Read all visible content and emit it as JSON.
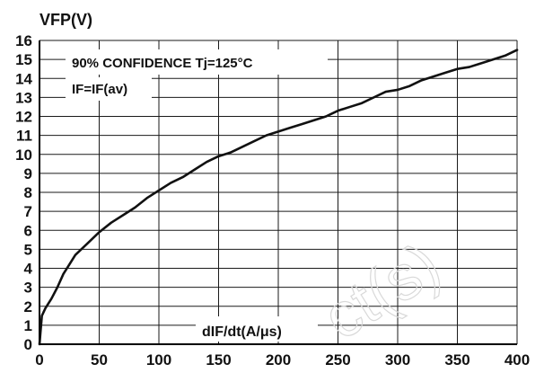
{
  "chart_data": {
    "type": "line",
    "title": "VFP(V)",
    "xlabel": "dIF/dt(A/μs)",
    "ylabel": "",
    "xlim": [
      0,
      400
    ],
    "ylim": [
      0,
      16
    ],
    "grid": true,
    "x_ticks": [
      "0",
      "50",
      "100",
      "150",
      "200",
      "250",
      "300",
      "350",
      "400"
    ],
    "y_ticks": [
      "0",
      "1",
      "2",
      "3",
      "4",
      "5",
      "6",
      "7",
      "8",
      "9",
      "10",
      "11",
      "12",
      "13",
      "14",
      "15",
      "16"
    ],
    "annotations": [
      "90% CONFIDENCE Tj=125°C",
      "IF=IF(av)"
    ],
    "watermark": "ct(s)",
    "series": [
      {
        "x": [
          0,
          2,
          5,
          10,
          15,
          20,
          25,
          30,
          40,
          50,
          60,
          70,
          80,
          90,
          100,
          110,
          120,
          130,
          140,
          150,
          160,
          170,
          180,
          190,
          200,
          210,
          220,
          230,
          240,
          250,
          260,
          270,
          280,
          290,
          300,
          310,
          320,
          330,
          340,
          350,
          360,
          370,
          380,
          390,
          400
        ],
        "y": [
          0.0,
          1.5,
          1.9,
          2.4,
          3.0,
          3.7,
          4.2,
          4.7,
          5.3,
          5.9,
          6.4,
          6.8,
          7.2,
          7.7,
          8.1,
          8.5,
          8.8,
          9.2,
          9.6,
          9.9,
          10.1,
          10.4,
          10.7,
          11.0,
          11.2,
          11.4,
          11.6,
          11.8,
          12.0,
          12.3,
          12.5,
          12.7,
          13.0,
          13.3,
          13.4,
          13.6,
          13.9,
          14.1,
          14.3,
          14.5,
          14.6,
          14.8,
          15.0,
          15.2,
          15.5
        ]
      }
    ]
  }
}
